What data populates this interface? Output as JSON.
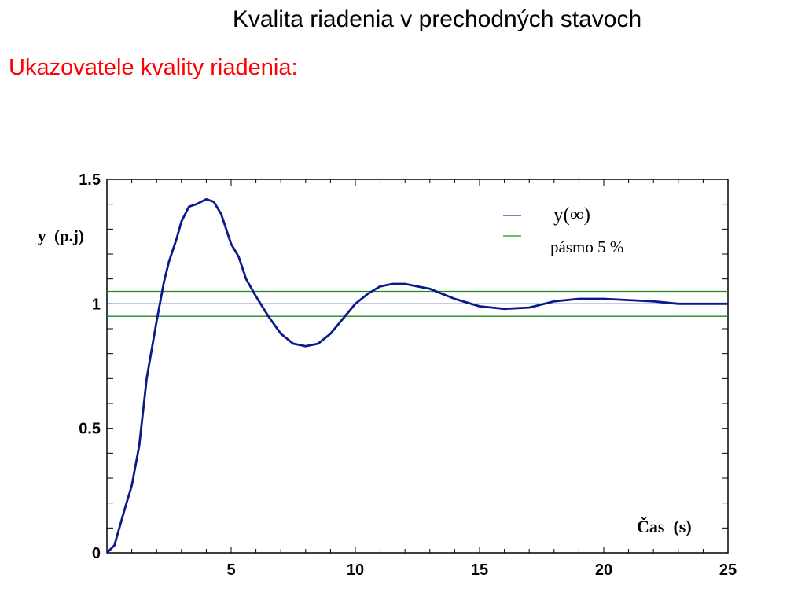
{
  "slide": {
    "title": "Kvalita riadenia v prechodných stavoch",
    "subtitle": "Ukazovatele kvality riadenia:"
  },
  "colors": {
    "title": "#000000",
    "subtitle": "#ff0000",
    "response_curve": "#0a1a8a",
    "steady_state_line": "#1f2f9a",
    "band_lines": "#1e8a1e"
  },
  "chart_data": {
    "type": "line",
    "ylabel": "y  (p.j)",
    "xlabel": "Čas  (s)",
    "xlim": [
      0,
      25
    ],
    "ylim": [
      0,
      1.5
    ],
    "x_ticks": [
      "5",
      "10",
      "15",
      "20",
      "25"
    ],
    "y_ticks": [
      "0",
      "0.5",
      "1",
      "1.5"
    ],
    "legend": {
      "placement": "top-right",
      "entries": [
        "y(∞)",
        "pásmo 5 %"
      ]
    },
    "steady_state": 1.0,
    "band": [
      0.95,
      1.05
    ],
    "series": [
      {
        "x": [
          0,
          0.3,
          0.7,
          1.0,
          1.3,
          1.6,
          2.0,
          2.3,
          2.5,
          2.8,
          3.0,
          3.3,
          3.6,
          4.0,
          4.3,
          4.6,
          5.0,
          5.3,
          5.6,
          6.0,
          6.5,
          7.0,
          7.5,
          8.0,
          8.5,
          9.0,
          9.5,
          10.0,
          10.5,
          11.0,
          11.5,
          12.0,
          12.5,
          13.0,
          13.5,
          14.0,
          15.0,
          16.0,
          17.0,
          18.0,
          19.0,
          20.0,
          21.0,
          22.0,
          23.0,
          24.0,
          25.0
        ],
        "y": [
          0.0,
          0.03,
          0.17,
          0.27,
          0.43,
          0.7,
          0.93,
          1.09,
          1.17,
          1.26,
          1.33,
          1.39,
          1.4,
          1.42,
          1.41,
          1.36,
          1.24,
          1.19,
          1.1,
          1.03,
          0.95,
          0.88,
          0.84,
          0.83,
          0.84,
          0.88,
          0.94,
          1.0,
          1.04,
          1.07,
          1.08,
          1.08,
          1.07,
          1.06,
          1.04,
          1.02,
          0.99,
          0.98,
          0.985,
          1.01,
          1.02,
          1.02,
          1.015,
          1.01,
          1.0,
          1.0,
          1.0
        ]
      }
    ]
  }
}
